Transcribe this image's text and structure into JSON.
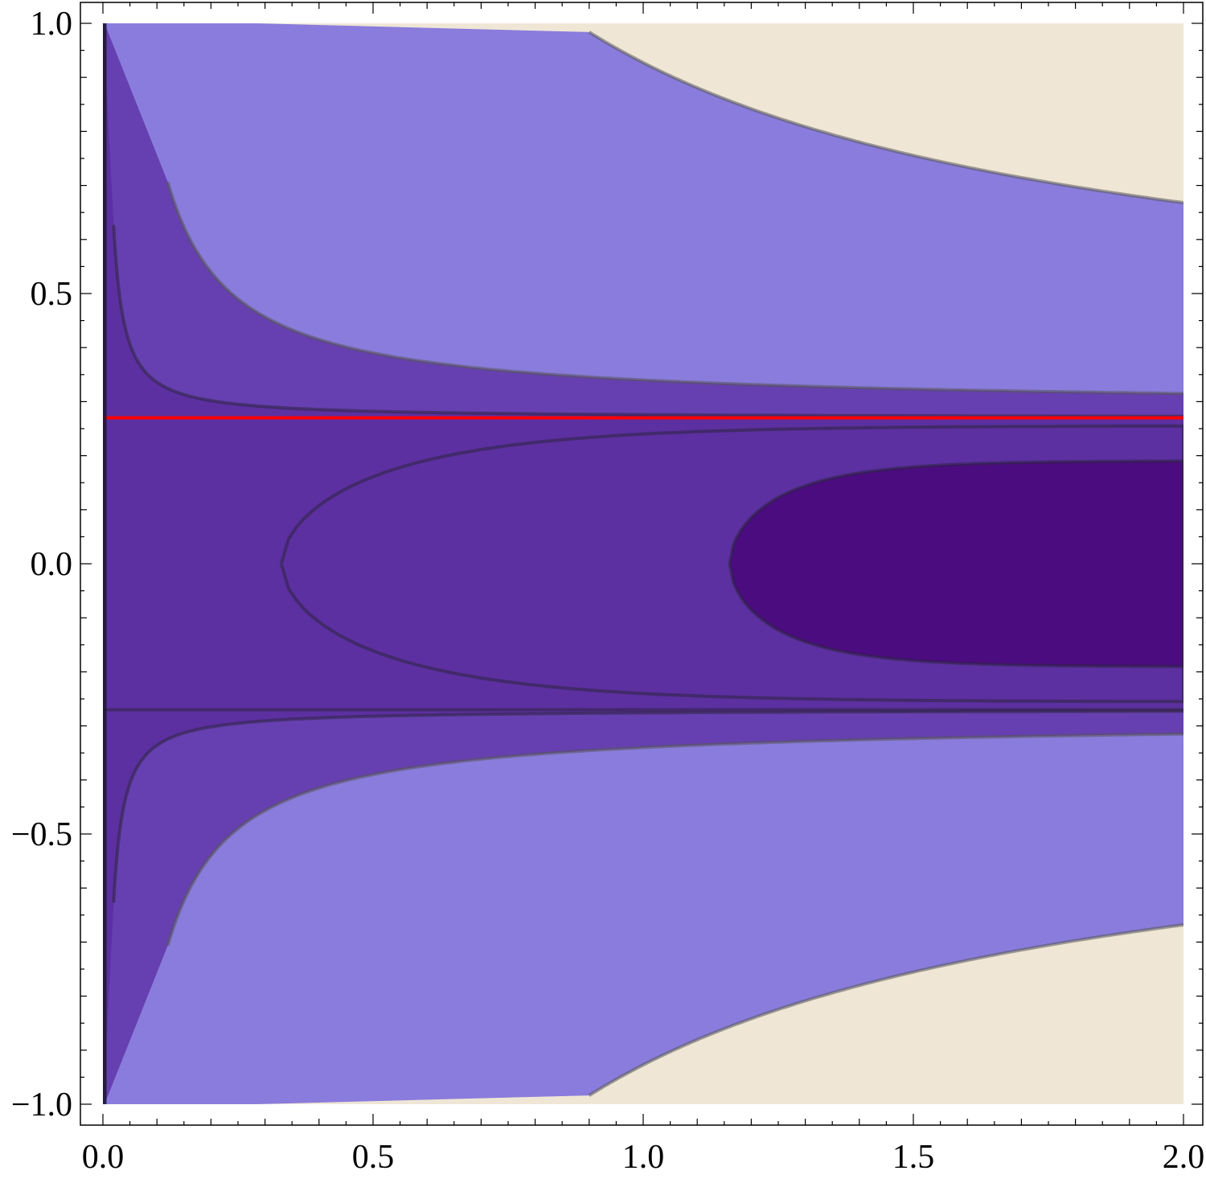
{
  "chart_data": {
    "type": "contour",
    "title": "",
    "xlabel": "",
    "ylabel": "",
    "xlim": [
      0.0,
      2.0
    ],
    "ylim": [
      -1.0,
      1.0
    ],
    "x_ticks": [
      0.0,
      0.5,
      1.0,
      1.5,
      2.0
    ],
    "y_ticks": [
      -1.0,
      -0.5,
      0.0,
      0.5,
      1.0
    ],
    "x_tick_labels": [
      "0.0",
      "0.5",
      "1.0",
      "1.5",
      "2.0"
    ],
    "y_tick_labels": [
      "−1.0",
      "−0.5",
      "0.0",
      "0.5",
      "1.0"
    ],
    "grid": false,
    "colors": {
      "level_1": "#4b0c80",
      "level_2": "#5c30a0",
      "level_3": "#6640b0",
      "level_4": "#8a7cdc",
      "level_5": "#efe6d6",
      "reference_line": "#ff0000"
    },
    "reference_line": {
      "orientation": "horizontal",
      "y": 0.27
    },
    "vertical_boundary": {
      "x": 0.0
    },
    "asymptote": {
      "y": -0.27
    }
  }
}
